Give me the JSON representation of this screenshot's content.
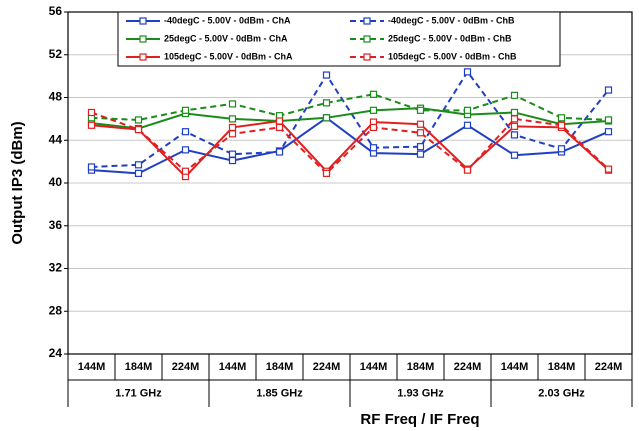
{
  "chart_data": {
    "type": "line",
    "x_label": "RF Freq / IF Freq",
    "y_label": "Output IP3 (dBm)",
    "categories": [
      "144M",
      "184M",
      "224M",
      "144M",
      "184M",
      "224M",
      "144M",
      "184M",
      "224M",
      "144M",
      "184M",
      "224M"
    ],
    "groups": [
      "1.71 GHz",
      "1.85 GHz",
      "1.93 GHz",
      "2.03 GHz"
    ],
    "ylim": [
      24,
      56
    ],
    "yticks": [
      24,
      28,
      32,
      36,
      40,
      44,
      48,
      52,
      56
    ],
    "grid": true,
    "series": [
      {
        "name": "-40degC - 5.00V - 0dBm - ChA",
        "color": "#1f3fc4",
        "style": "solid",
        "values": [
          41.2,
          40.9,
          43.1,
          42.1,
          43.0,
          46.1,
          42.8,
          42.7,
          45.4,
          42.6,
          42.9,
          44.8
        ]
      },
      {
        "name": "-40degC - 5.00V - 0dBm - ChB",
        "color": "#1f3fc4",
        "style": "dashed",
        "values": [
          41.5,
          41.7,
          44.8,
          42.7,
          42.9,
          50.1,
          43.3,
          43.4,
          50.4,
          44.5,
          43.2,
          48.7
        ]
      },
      {
        "name": "25degC - 5.00V - 0dBm - ChA",
        "color": "#1a8c1a",
        "style": "solid",
        "values": [
          45.6,
          45.1,
          46.5,
          46.0,
          45.8,
          46.1,
          46.8,
          47.0,
          46.4,
          46.6,
          45.5,
          45.8
        ]
      },
      {
        "name": "25degC - 5.00V - 0dBm - ChB",
        "color": "#1a8c1a",
        "style": "dashed",
        "values": [
          46.1,
          45.9,
          46.8,
          47.4,
          46.3,
          47.5,
          48.3,
          46.8,
          46.8,
          48.2,
          46.1,
          45.9
        ]
      },
      {
        "name": "105degC - 5.00V - 0dBm - ChA",
        "color": "#e02020",
        "style": "solid",
        "values": [
          45.4,
          45.0,
          40.6,
          45.2,
          45.8,
          41.1,
          45.7,
          45.5,
          41.3,
          45.3,
          45.2,
          41.2
        ]
      },
      {
        "name": "105degC - 5.00V - 0dBm - ChB",
        "color": "#e02020",
        "style": "dashed",
        "values": [
          46.6,
          45.0,
          41.1,
          44.6,
          45.2,
          40.9,
          45.2,
          44.7,
          41.2,
          46.0,
          45.4,
          41.3
        ]
      }
    ]
  }
}
